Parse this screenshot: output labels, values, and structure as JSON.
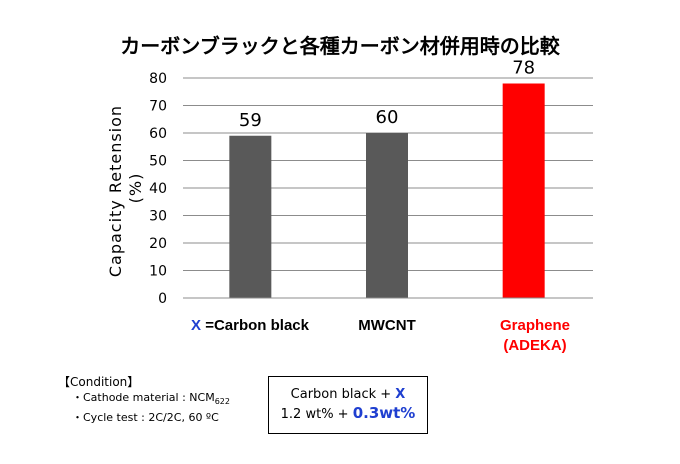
{
  "chart_data": {
    "type": "bar",
    "title": "カーボンブラックと各種カーボン材併用時の比較",
    "ylabel_line1": "Capacity Retension",
    "ylabel_line2": "(%)",
    "ylim": [
      0,
      80
    ],
    "yticks": [
      0,
      10,
      20,
      30,
      40,
      50,
      60,
      70,
      80
    ],
    "grid": true,
    "categories": [
      "X =Carbon black",
      "MWCNT",
      "Graphene (ADEKA)"
    ],
    "values": [
      59,
      60,
      78
    ],
    "colors": [
      "#595959",
      "#595959",
      "#ff0000"
    ],
    "category_labels": {
      "cb_prefix": "X ",
      "cb_rest": "=Carbon black",
      "mwcnt": "MWCNT",
      "graphene_line1": "Graphene",
      "graphene_line2": "(ADEKA)"
    }
  },
  "condition": {
    "heading": "【Condition】",
    "item1_prefix": "・Cathode material : NCM",
    "item1_sub": "622",
    "item2": "・Cycle test : 2C/2C, 60 ºC"
  },
  "note": {
    "line1_text": "Carbon black + ",
    "line1_x": "X",
    "line2_text": "1.2 wt% + ",
    "line2_highlight": "0.3wt%"
  },
  "colors": {
    "accent_blue": "#1f3fd0",
    "graphene_red": "#ff0000",
    "bar_gray": "#595959"
  }
}
